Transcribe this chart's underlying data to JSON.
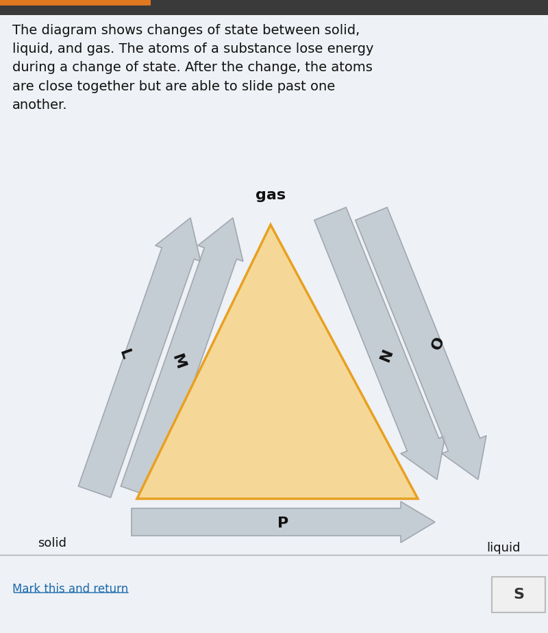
{
  "background_color": "#eef1f5",
  "text_question": "The diagram shows changes of state between solid,\nliquid, and gas. The atoms of a substance lose energy\nduring a change of state. After the change, the atoms\nare close together but are able to slide past one\nanother.",
  "text_question_fontsize": 14,
  "gas_label": "gas",
  "gas_label_fontsize": 16,
  "solid_label": "solid",
  "liquid_label": "liquid",
  "state_label_fontsize": 13,
  "arrow_label_fontsize": 15,
  "triangle_color": "#e8a020",
  "triangle_fill": "#f5d898",
  "triangle_lw": 2.5,
  "arrow_color": "#c0c8d0",
  "arrow_edge_color": "#9aa0aa",
  "arrow_alpha": 0.88,
  "label_L": "L",
  "label_M": "M",
  "label_N": "N",
  "label_O": "O",
  "label_P": "P",
  "link_text": "Mark this and return",
  "link_color": "#1a6aaf",
  "link_fontsize": 12,
  "top_bar_color": "#3a3a3a",
  "orange_bar_color": "#e07820"
}
